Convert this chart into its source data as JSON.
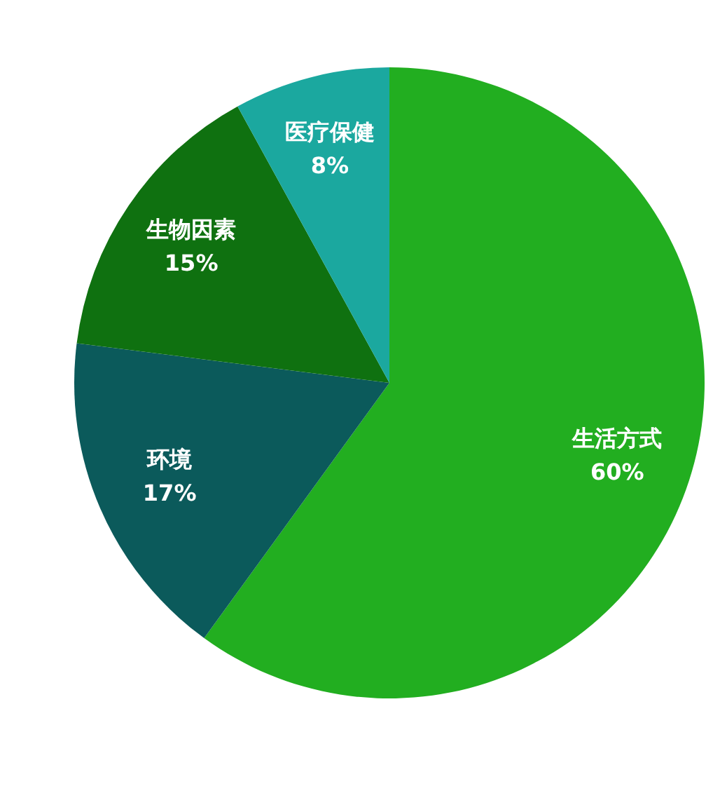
{
  "chart_data": {
    "type": "pie",
    "categories": [
      "生活方式",
      "环境",
      "生物因素",
      "医疗保健"
    ],
    "values": [
      60,
      17,
      15,
      8
    ],
    "colors": [
      "#22ae20",
      "#0b5a5b",
      "#0f7110",
      "#1ba89f"
    ],
    "value_labels": [
      "60%",
      "17%",
      "15%",
      "8%"
    ],
    "legend": false
  }
}
